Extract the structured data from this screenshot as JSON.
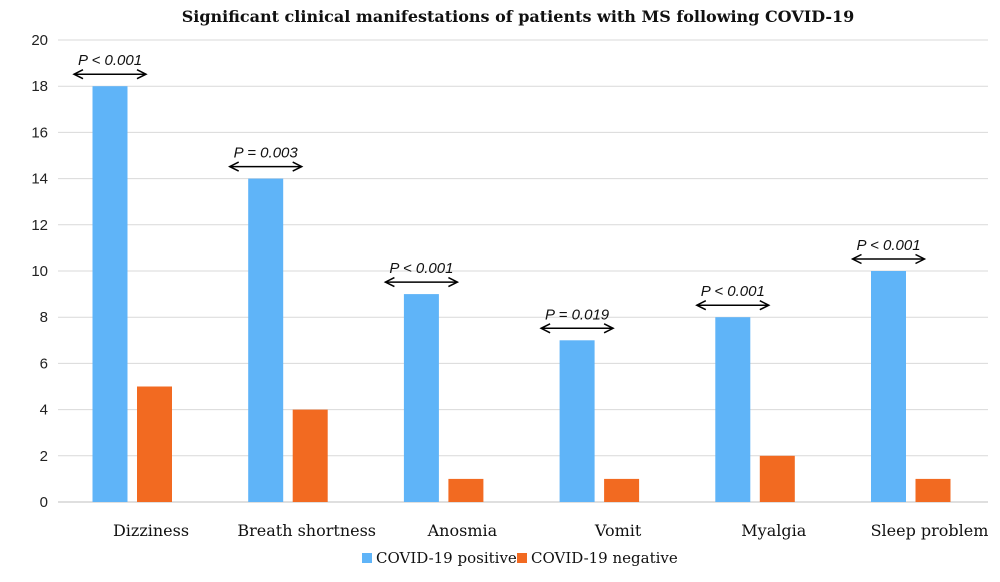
{
  "chart_data": {
    "type": "bar",
    "title": "Significant clinical manifestations of patients with MS following COVID-19",
    "categories": [
      "Dizziness",
      "Breath shortness",
      "Anosmia",
      "Vomit",
      "Myalgia",
      "Sleep problem"
    ],
    "series": [
      {
        "name": "COVID-19 positive",
        "values": [
          18,
          14,
          9,
          7,
          8,
          10
        ],
        "color": "#5fb4f8"
      },
      {
        "name": "COVID-19 negative",
        "values": [
          5,
          4,
          1,
          1,
          2,
          1
        ],
        "color": "#f26a21"
      }
    ],
    "annotations": [
      "P < 0.001",
      "P = 0.003",
      "P < 0.001",
      "P = 0.019",
      "P < 0.001",
      "P < 0.001"
    ],
    "ylim": [
      0,
      20
    ],
    "yticks": [
      0,
      2,
      4,
      6,
      8,
      10,
      12,
      14,
      16,
      18,
      20
    ],
    "xlabel": "",
    "ylabel": "",
    "grid": true,
    "legend_position": "bottom"
  }
}
